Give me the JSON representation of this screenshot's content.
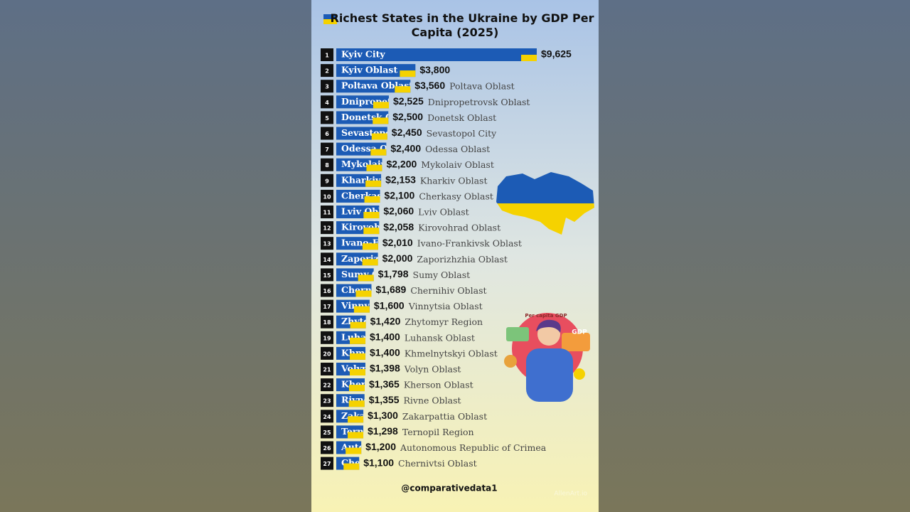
{
  "chart_data": {
    "type": "bar",
    "orientation": "horizontal",
    "title": "Richest States in the Ukraine by GDP Per Capita (2025)",
    "ranks": [
      1,
      2,
      3,
      4,
      5,
      6,
      7,
      8,
      9,
      10,
      11,
      12,
      13,
      14,
      15,
      16,
      17,
      18,
      19,
      20,
      21,
      22,
      23,
      24,
      25,
      26,
      27
    ],
    "categories": [
      "Kyiv City",
      "Kyiv Oblast",
      "Poltava Oblast",
      "Dnipropetrovsk Oblast",
      "Donetsk Oblast",
      "Sevastopol City",
      "Odessa Oblast",
      "Mykolaiv Oblast",
      "Kharkiv Oblast",
      "Cherkasy Oblast",
      "Lviv Oblast",
      "Kirovohrad Oblast",
      "Ivano-Frankivsk Oblast",
      "Zaporizhzhia Oblast",
      "Sumy Oblast",
      "Chernihiv Oblast",
      "Vinnytsia Oblast",
      "Zhytomyr Region",
      "Luhansk Oblast",
      "Khmelnytskyi Oblast",
      "Volyn Oblast",
      "Kherson Oblast",
      "Rivne Oblast",
      "Zakarpattia Oblast",
      "Ternopil Region",
      "Autonomous Republic of Crimea",
      "Chernivtsi Oblast"
    ],
    "values": [
      9625,
      3800,
      3560,
      2525,
      2500,
      2450,
      2400,
      2200,
      2153,
      2100,
      2060,
      2058,
      2010,
      2000,
      1798,
      1689,
      1600,
      1420,
      1400,
      1400,
      1398,
      1365,
      1355,
      1300,
      1298,
      1200,
      1100
    ],
    "value_labels": [
      "$9,625",
      "$3,800",
      "$3,560",
      "$2,525",
      "$2,500",
      "$2,450",
      "$2,400",
      "$2,200",
      "$2,153",
      "$2,100",
      "$2,060",
      "$2,058",
      "$2,010",
      "$2,000",
      "$1,798",
      "$1,689",
      "$1,600",
      "$1,420",
      "$1,400",
      "$1,400",
      "$1,398",
      "$1,365",
      "$1,355",
      "$1,300",
      "$1,298",
      "$1,200",
      "$1,100"
    ],
    "color": "#1c5bb5",
    "accent": "#f5d200"
  },
  "illustration": {
    "caption": "Per capita GDP",
    "badge": "GDP"
  },
  "credit": "@comparativedata1",
  "watermark": "AllenArt.io"
}
